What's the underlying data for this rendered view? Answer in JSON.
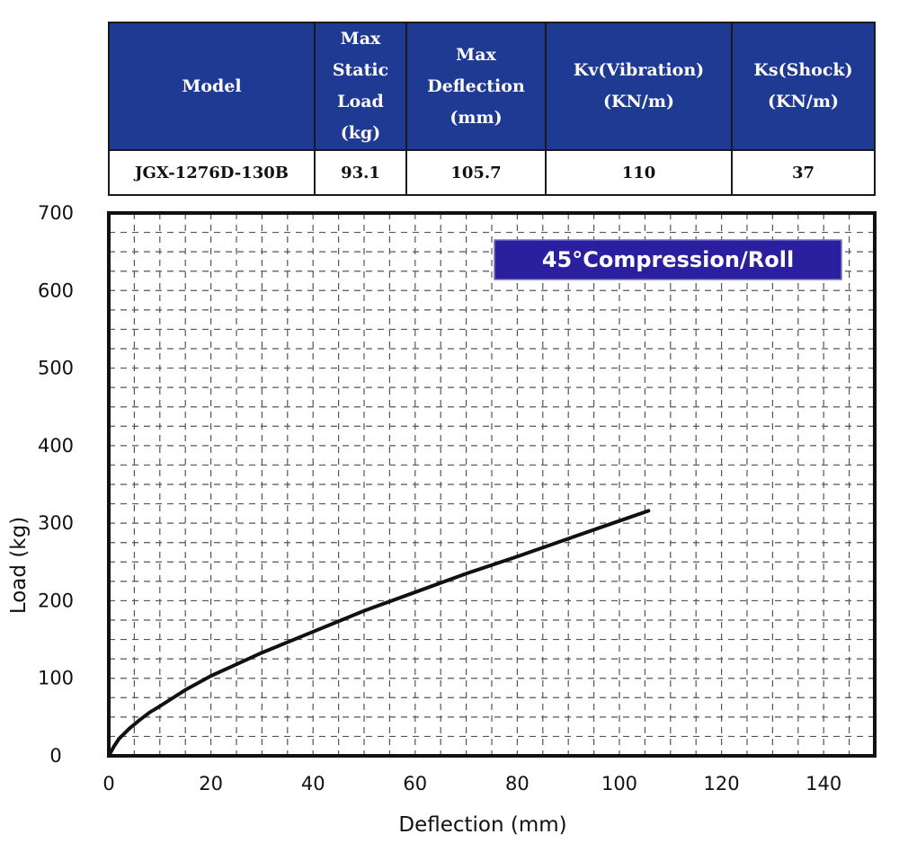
{
  "spec_table": {
    "headers": [
      [
        "Model"
      ],
      [
        "Max",
        "Static",
        "Load",
        "(kg)"
      ],
      [
        "Max",
        "Deflection",
        "(mm)"
      ],
      [
        "Kv(Vibration)",
        "(KN/m)"
      ],
      [
        "Ks(Shock)",
        "(KN/m)"
      ]
    ],
    "row": [
      "JGX-1276D-130B",
      "93.1",
      "105.7",
      "110",
      "37"
    ],
    "header_color": "#1f3a93"
  },
  "chart_data": {
    "type": "line",
    "title": "45°Compression/Roll",
    "title_badge_color": "#2a1f9e",
    "xlabel": "Deflection (mm)",
    "ylabel": "Load (kg)",
    "xlim": [
      0,
      150
    ],
    "ylim": [
      0,
      700
    ],
    "xticks": [
      0,
      20,
      40,
      60,
      80,
      100,
      120,
      140
    ],
    "yticks": [
      0,
      100,
      200,
      300,
      400,
      500,
      600,
      700
    ],
    "grid": true,
    "grid_style": "dashed",
    "series": [
      {
        "color": "#111111",
        "x": [
          0,
          1,
          2,
          4,
          6,
          8,
          10,
          15,
          20,
          30,
          40,
          50,
          60,
          70,
          80,
          90,
          100,
          105.7
        ],
        "y": [
          0,
          12,
          22,
          35,
          46,
          56,
          64,
          85,
          103,
          133,
          160,
          187,
          211,
          235,
          257,
          280,
          303,
          316
        ]
      }
    ]
  }
}
